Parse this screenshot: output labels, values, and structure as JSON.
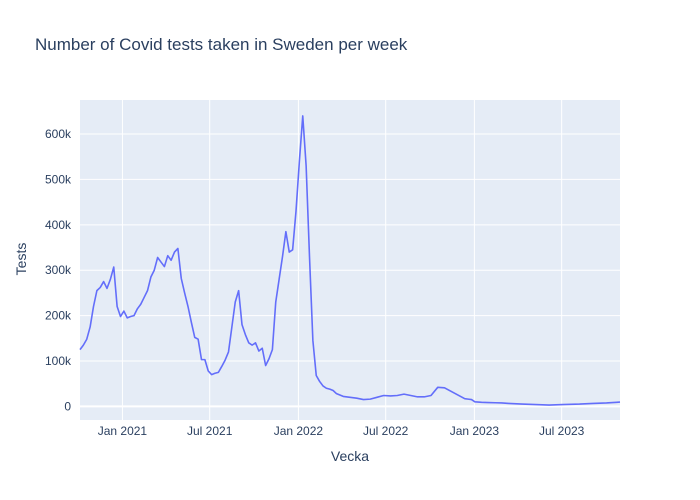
{
  "chart_data": {
    "type": "line",
    "title": "Number of Covid tests taken in Sweden per week",
    "xlabel": "Vecka",
    "ylabel": "Tests",
    "grid": true,
    "legend": "none",
    "xlim": [
      "2020-10-05",
      "2023-10-30"
    ],
    "ylim": [
      -30000,
      675000
    ],
    "x_ticks": [
      {
        "date": "2021-01-01",
        "label": "Jan 2021"
      },
      {
        "date": "2021-07-01",
        "label": "Jul 2021"
      },
      {
        "date": "2022-01-01",
        "label": "Jan 2022"
      },
      {
        "date": "2022-07-01",
        "label": "Jul 2022"
      },
      {
        "date": "2023-01-01",
        "label": "Jan 2023"
      },
      {
        "date": "2023-07-01",
        "label": "Jul 2023"
      }
    ],
    "y_ticks": [
      {
        "value": 0,
        "label": "0"
      },
      {
        "value": 100000,
        "label": "100k"
      },
      {
        "value": 200000,
        "label": "200k"
      },
      {
        "value": 300000,
        "label": "300k"
      },
      {
        "value": 400000,
        "label": "400k"
      },
      {
        "value": 500000,
        "label": "500k"
      },
      {
        "value": 600000,
        "label": "600k"
      }
    ],
    "colors": {
      "line": "#636efa",
      "plot_bg": "#e5ecf6",
      "grid": "#ffffff",
      "text": "#2a3f5f"
    },
    "series": [
      {
        "x": [
          "2020-10-05",
          "2020-10-12",
          "2020-10-19",
          "2020-10-26",
          "2020-11-02",
          "2020-11-09",
          "2020-11-16",
          "2020-11-23",
          "2020-11-30",
          "2020-12-07",
          "2020-12-14",
          "2020-12-21",
          "2020-12-28",
          "2021-01-04",
          "2021-01-11",
          "2021-01-18",
          "2021-01-25",
          "2021-02-01",
          "2021-02-08",
          "2021-02-15",
          "2021-02-22",
          "2021-03-01",
          "2021-03-08",
          "2021-03-15",
          "2021-03-22",
          "2021-03-29",
          "2021-04-05",
          "2021-04-12",
          "2021-04-19",
          "2021-04-26",
          "2021-05-03",
          "2021-05-10",
          "2021-05-17",
          "2021-05-24",
          "2021-05-31",
          "2021-06-07",
          "2021-06-14",
          "2021-06-21",
          "2021-06-28",
          "2021-07-05",
          "2021-07-12",
          "2021-07-19",
          "2021-07-26",
          "2021-08-02",
          "2021-08-09",
          "2021-08-16",
          "2021-08-23",
          "2021-08-30",
          "2021-09-06",
          "2021-09-13",
          "2021-09-20",
          "2021-09-27",
          "2021-10-04",
          "2021-10-11",
          "2021-10-18",
          "2021-10-25",
          "2021-11-01",
          "2021-11-08",
          "2021-11-15",
          "2021-11-22",
          "2021-11-29",
          "2021-12-06",
          "2021-12-13",
          "2021-12-20",
          "2021-12-27",
          "2022-01-03",
          "2022-01-10",
          "2022-01-17",
          "2022-01-24",
          "2022-01-31",
          "2022-02-07",
          "2022-02-14",
          "2022-02-21",
          "2022-02-28",
          "2022-03-07",
          "2022-03-14",
          "2022-03-21",
          "2022-04-04",
          "2022-04-18",
          "2022-05-02",
          "2022-05-16",
          "2022-05-30",
          "2022-06-13",
          "2022-06-27",
          "2022-07-11",
          "2022-07-25",
          "2022-08-08",
          "2022-08-22",
          "2022-09-05",
          "2022-09-19",
          "2022-10-03",
          "2022-10-17",
          "2022-10-31",
          "2022-11-14",
          "2022-11-28",
          "2022-12-12",
          "2022-12-19",
          "2022-12-26",
          "2023-01-02",
          "2023-01-16",
          "2023-01-30",
          "2023-02-13",
          "2023-02-27",
          "2023-03-13",
          "2023-04-10",
          "2023-05-08",
          "2023-06-05",
          "2023-07-03",
          "2023-08-07",
          "2023-09-04",
          "2023-10-02",
          "2023-10-23",
          "2023-10-30"
        ],
        "y": [
          125000,
          135000,
          148000,
          175000,
          220000,
          255000,
          262000,
          275000,
          260000,
          280000,
          307000,
          220000,
          198000,
          210000,
          195000,
          198000,
          200000,
          215000,
          225000,
          240000,
          255000,
          285000,
          300000,
          328000,
          318000,
          308000,
          332000,
          322000,
          340000,
          348000,
          282000,
          250000,
          220000,
          185000,
          152000,
          148000,
          103000,
          103000,
          78000,
          70000,
          73000,
          75000,
          88000,
          102000,
          120000,
          175000,
          230000,
          255000,
          180000,
          158000,
          140000,
          135000,
          140000,
          122000,
          128000,
          90000,
          105000,
          125000,
          230000,
          280000,
          330000,
          385000,
          340000,
          345000,
          430000,
          540000,
          640000,
          530000,
          330000,
          145000,
          68000,
          55000,
          45000,
          40000,
          38000,
          35000,
          28000,
          22000,
          20000,
          18000,
          15000,
          16000,
          20000,
          24000,
          23000,
          24000,
          27000,
          24000,
          21000,
          21000,
          24000,
          42000,
          41000,
          33000,
          25000,
          17000,
          16000,
          15000,
          10000,
          9000,
          8500,
          8000,
          7500,
          6500,
          5000,
          4000,
          3000,
          4000,
          5000,
          6500,
          7500,
          9000,
          9500
        ],
        "name": ""
      }
    ]
  }
}
